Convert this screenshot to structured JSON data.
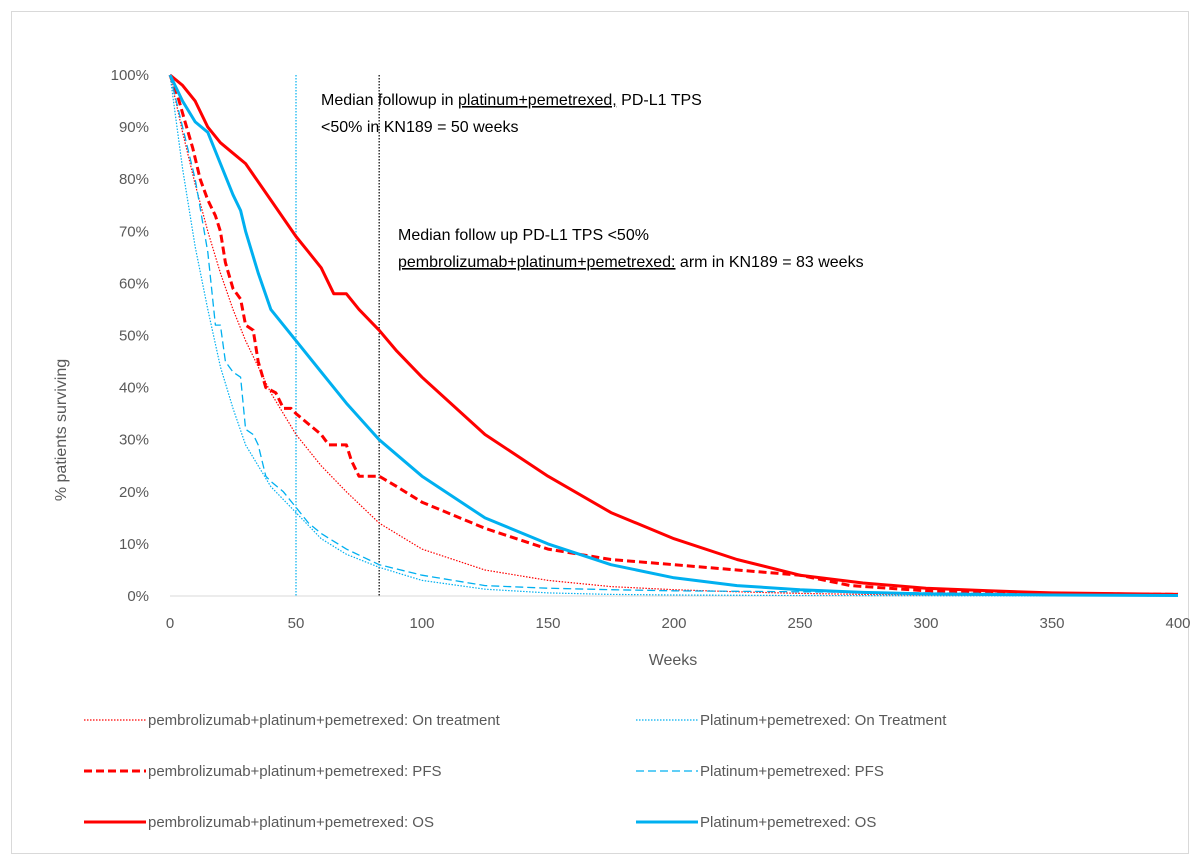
{
  "chart_data": {
    "type": "line",
    "xlabel": "Weeks",
    "ylabel": "% patients surviving",
    "xlim": [
      0,
      400
    ],
    "ylim": [
      0,
      100
    ],
    "x_ticks": [
      "0",
      "50",
      "100",
      "150",
      "200",
      "250",
      "300",
      "350",
      "400"
    ],
    "y_ticks": [
      "0%",
      "10%",
      "20%",
      "30%",
      "40%",
      "50%",
      "60%",
      "70%",
      "80%",
      "90%",
      "100%"
    ],
    "grid": false,
    "legend_position": "bottom",
    "reference_lines": [
      {
        "x": 50,
        "color": "#00b0f0",
        "style": "dotted"
      },
      {
        "x": 83,
        "color": "#000000",
        "style": "dotted"
      }
    ],
    "annotations": [
      {
        "lines": [
          [
            {
              "text": "Median followup in ",
              "u": false
            },
            {
              "text": "platinum+pemetrexed,",
              "u": true
            },
            {
              "text": " PD-L1 TPS",
              "u": false
            }
          ],
          [
            {
              "text": "<50% in  KN189 =  50 weeks",
              "u": false
            }
          ]
        ]
      },
      {
        "lines": [
          [
            {
              "text": "Median follow up PD-L1 TPS <50%",
              "u": false
            }
          ],
          [
            {
              "text": "pembrolizumab+platinum+pemetrexed:",
              "u": true
            },
            {
              "text": " arm in KN189 = 83 weeks",
              "u": false
            }
          ]
        ]
      }
    ],
    "series": [
      {
        "name": "pembrolizumab+platinum+pemetrexed: On treatment",
        "color": "#ff0000",
        "style": "dotted",
        "width": 1.2,
        "x": [
          0,
          5,
          10,
          15,
          20,
          25,
          30,
          40,
          50,
          60,
          70,
          83,
          100,
          125,
          150,
          175,
          200,
          225,
          250,
          275,
          300,
          350,
          400
        ],
        "y": [
          100,
          89,
          79,
          70,
          62,
          55,
          49,
          39,
          31,
          25,
          20,
          14,
          9,
          5,
          3,
          1.8,
          1.2,
          0.8,
          0.5,
          0.3,
          0.2,
          0.1,
          0.05
        ]
      },
      {
        "name": "Platinum+pemetrexed: On Treatment",
        "color": "#00b0f0",
        "style": "dotted",
        "width": 1.2,
        "x": [
          0,
          5,
          10,
          15,
          20,
          25,
          30,
          40,
          50,
          60,
          70,
          83,
          100,
          125,
          150,
          175,
          200,
          250,
          300,
          400
        ],
        "y": [
          100,
          82,
          67,
          55,
          44,
          36,
          29,
          21,
          16,
          11,
          8,
          5.5,
          3,
          1.3,
          0.6,
          0.3,
          0.2,
          0.1,
          0.05,
          0
        ]
      },
      {
        "name": "pembrolizumab+platinum+pemetrexed: PFS",
        "color": "#ff0000",
        "style": "dashed",
        "width": 3,
        "x": [
          0,
          3,
          6,
          9,
          12,
          15,
          18,
          20,
          22,
          25,
          28,
          30,
          33,
          35,
          38,
          42,
          45,
          48,
          50,
          55,
          60,
          63,
          65,
          70,
          72,
          75,
          83,
          90,
          100,
          125,
          150,
          175,
          200,
          225,
          250,
          270,
          300,
          350,
          400
        ],
        "y": [
          100,
          96,
          91,
          86,
          80,
          76,
          73,
          70,
          64,
          59,
          57,
          52,
          51,
          45,
          40,
          39,
          36,
          36,
          35,
          33,
          31,
          29,
          29,
          29,
          26,
          23,
          23,
          21,
          18,
          13,
          9,
          7,
          6,
          5,
          4,
          2,
          1,
          0.5,
          0.3
        ]
      },
      {
        "name": "Platinum+pemetrexed: PFS",
        "color": "#00b0f0",
        "style": "dashed",
        "width": 1.3,
        "x": [
          0,
          5,
          10,
          15,
          18,
          20,
          22,
          25,
          28,
          30,
          33,
          35,
          38,
          40,
          45,
          50,
          55,
          60,
          70,
          83,
          100,
          125,
          150,
          175,
          200,
          250,
          300,
          350,
          400
        ],
        "y": [
          100,
          90,
          80,
          66,
          52,
          52,
          45,
          43,
          42,
          32,
          31,
          29,
          23,
          22,
          20,
          17,
          14,
          12,
          9,
          6,
          4,
          2,
          1.5,
          1.2,
          1,
          0.8,
          0.6,
          0.4,
          0.3
        ]
      },
      {
        "name": "pembrolizumab+platinum+pemetrexed: OS",
        "color": "#ff0000",
        "style": "solid",
        "width": 3,
        "x": [
          0,
          5,
          10,
          15,
          20,
          25,
          30,
          40,
          50,
          55,
          60,
          65,
          70,
          75,
          83,
          90,
          100,
          125,
          150,
          175,
          200,
          225,
          250,
          275,
          300,
          325,
          350,
          400
        ],
        "y": [
          100,
          98,
          95,
          90,
          87,
          85,
          83,
          76,
          69,
          66,
          63,
          58,
          58,
          55,
          51,
          47,
          42,
          31,
          23,
          16,
          11,
          7,
          4,
          2.5,
          1.5,
          1,
          0.6,
          0.3
        ]
      },
      {
        "name": "Platinum+pemetrexed: OS",
        "color": "#00b0f0",
        "style": "solid",
        "width": 3,
        "x": [
          0,
          5,
          10,
          15,
          20,
          25,
          28,
          30,
          35,
          40,
          45,
          50,
          60,
          70,
          83,
          100,
          125,
          150,
          175,
          200,
          225,
          250,
          275,
          300,
          350,
          400
        ],
        "y": [
          100,
          95,
          91,
          89,
          83,
          77,
          74,
          70,
          62,
          55,
          52,
          49,
          43,
          37,
          30,
          23,
          15,
          10,
          6,
          3.5,
          2,
          1.2,
          0.7,
          0.4,
          0.2,
          0.1
        ]
      }
    ]
  }
}
